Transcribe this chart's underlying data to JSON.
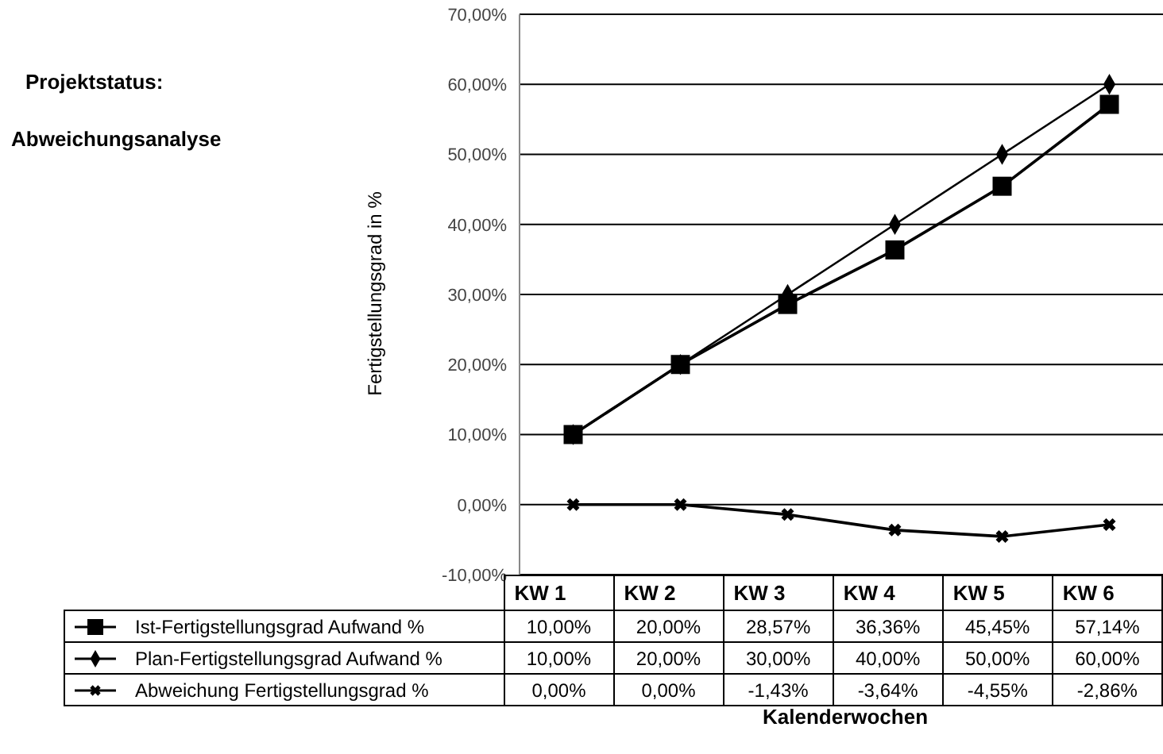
{
  "chart_data": {
    "type": "line",
    "title": "Projektstatus:",
    "subtitle": "Abweichungsanalyse",
    "xlabel": "Kalenderwochen",
    "ylabel": "Fertigstellungsgrad in %",
    "categories": [
      "KW 1",
      "KW 2",
      "KW 3",
      "KW 4",
      "KW 5",
      "KW 6"
    ],
    "series": [
      {
        "name": "Ist-Fertigstellungsgrad Aufwand %",
        "color": "#000000",
        "marker": "square",
        "values": [
          10,
          20,
          28.57,
          36.36,
          45.45,
          57.14
        ],
        "value_labels": [
          "10,00%",
          "20,00%",
          "28,57%",
          "36,36%",
          "45,45%",
          "57,14%"
        ]
      },
      {
        "name": "Plan-Fertigstellungsgrad Aufwand %",
        "color": "#000000",
        "marker": "diamond",
        "values": [
          10,
          20,
          30,
          40,
          50,
          60
        ],
        "value_labels": [
          "10,00%",
          "20,00%",
          "30,00%",
          "40,00%",
          "50,00%",
          "60,00%"
        ]
      },
      {
        "name": "Abweichung Fertigstellungsgrad %",
        "color": "#000000",
        "marker": "cross",
        "values": [
          0,
          0,
          -1.43,
          -3.64,
          -4.55,
          -2.86
        ],
        "value_labels": [
          "0,00%",
          "0,00%",
          "-1,43%",
          "-3,64%",
          "-4,55%",
          "-2,86%"
        ]
      }
    ],
    "ylim": [
      -10,
      70
    ],
    "yticks": [
      {
        "value": -10,
        "label": "-10,00%"
      },
      {
        "value": 0,
        "label": "0,00%"
      },
      {
        "value": 10,
        "label": "10,00%"
      },
      {
        "value": 20,
        "label": "20,00%"
      },
      {
        "value": 30,
        "label": "30,00%"
      },
      {
        "value": 40,
        "label": "40,00%"
      },
      {
        "value": 50,
        "label": "50,00%"
      },
      {
        "value": 60,
        "label": "60,00%"
      },
      {
        "value": 70,
        "label": "70,00%"
      }
    ],
    "grid": "y",
    "legend": "bottom",
    "data_labels": true,
    "line_style": "solid"
  }
}
